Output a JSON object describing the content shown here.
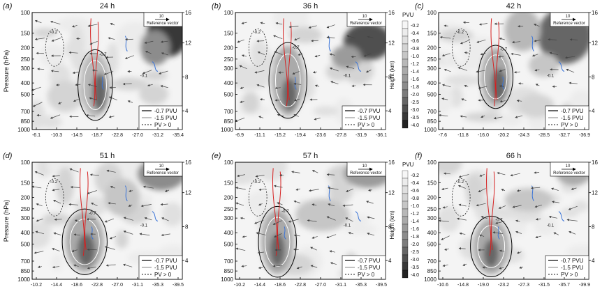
{
  "figure": {
    "y_axis_label": "Pressure (hPa)",
    "right_axis_label": "Height (km)",
    "colorbar_title": "PVU",
    "colorbar_levels": [
      "-0.2",
      "-0.4",
      "-0.6",
      "-0.8",
      "-1.0",
      "-1.2",
      "-1.4",
      "-1.6",
      "-1.8",
      "-2.0",
      "-2.5",
      "-3.0",
      "-3.5",
      "-4.0"
    ],
    "colorbar_fill": [
      "#f6f6f6",
      "#ececec",
      "#e0e0e0",
      "#d4d4d4",
      "#c6c6c6",
      "#b8b8b8",
      "#aaaaaa",
      "#9b9b9b",
      "#8c8c8c",
      "#7c7c7c",
      "#666666",
      "#4f4f4f",
      "#393939",
      "#222222"
    ],
    "reference_vector": {
      "value": "10",
      "label": "Reference vector"
    },
    "legend": [
      "-0.7 PVU",
      "-1.5 PVU",
      "PV > 0"
    ],
    "contour_labels": [
      "-0.7",
      "-0.1",
      "-0.2"
    ],
    "colors": {
      "red_contour": "#d62020",
      "blue_contour": "#3a74d8",
      "grid": "#000000"
    }
  },
  "chart_data": [
    {
      "type": "heatmap",
      "panel": "(a)",
      "title": "24 h",
      "x_ticks": [
        "-6.1",
        "-10.3",
        "-14.5",
        "-18.7",
        "-22.8",
        "-27.0",
        "-31.2",
        "-35.4"
      ],
      "y_ticks": [
        "100",
        "150",
        "200",
        "250",
        "300",
        "400",
        "500",
        "700",
        "850",
        "1000"
      ],
      "y2_ticks": [
        "16",
        "12",
        "8",
        "4"
      ],
      "ylabel": "Pressure (hPa)",
      "ylim": [
        1000,
        100
      ],
      "zlevels_pvu": [
        -4.0,
        -0.2
      ]
    },
    {
      "type": "heatmap",
      "panel": "(b)",
      "title": "36 h",
      "x_ticks": [
        "-6.9",
        "-11.1",
        "-15.2",
        "-19.4",
        "-23.6",
        "-27.8",
        "-31.9",
        "-36.1"
      ],
      "y_ticks": [
        "100",
        "150",
        "200",
        "250",
        "300",
        "400",
        "500",
        "700",
        "850",
        "1000"
      ],
      "y2_ticks": [
        "16",
        "12",
        "8",
        "4"
      ],
      "ylabel": "",
      "ylim": [
        1000,
        100
      ],
      "zlevels_pvu": [
        -4.0,
        -0.2
      ]
    },
    {
      "type": "heatmap",
      "panel": "(c)",
      "title": "42 h",
      "x_ticks": [
        "-7.6",
        "-11.8",
        "-16.0",
        "-20.2",
        "-24.3",
        "-28.5",
        "-32.7",
        "-36.9"
      ],
      "y_ticks": [
        "100",
        "150",
        "200",
        "250",
        "300",
        "400",
        "500",
        "700",
        "850",
        "1000"
      ],
      "y2_ticks": [
        "16",
        "12",
        "8",
        "4"
      ],
      "ylabel": "",
      "ylim": [
        1000,
        100
      ],
      "zlevels_pvu": [
        -4.0,
        -0.2
      ]
    },
    {
      "type": "heatmap",
      "panel": "(d)",
      "title": "51 h",
      "x_ticks": [
        "-10.2",
        "-14.4",
        "-18.6",
        "-22.8",
        "-27.0",
        "-31.1",
        "-35.3",
        "-39.5"
      ],
      "y_ticks": [
        "100",
        "150",
        "200",
        "250",
        "300",
        "400",
        "500",
        "700",
        "850",
        "1000"
      ],
      "y2_ticks": [
        "16",
        "12",
        "8",
        "4"
      ],
      "ylabel": "Pressure (hPa)",
      "ylim": [
        1000,
        100
      ],
      "zlevels_pvu": [
        -4.0,
        -0.2
      ]
    },
    {
      "type": "heatmap",
      "panel": "(e)",
      "title": "57 h",
      "x_ticks": [
        "-10.2",
        "-14.4",
        "-18.6",
        "-22.8",
        "-27.0",
        "-31.1",
        "-35.3",
        "-39.5"
      ],
      "y_ticks": [
        "100",
        "150",
        "200",
        "250",
        "300",
        "400",
        "500",
        "700",
        "850",
        "1000"
      ],
      "y2_ticks": [
        "16",
        "12",
        "8",
        "4"
      ],
      "ylabel": "",
      "ylim": [
        1000,
        100
      ],
      "zlevels_pvu": [
        -4.0,
        -0.2
      ]
    },
    {
      "type": "heatmap",
      "panel": "(f)",
      "title": "66 h",
      "x_ticks": [
        "-10.6",
        "-14.8",
        "-19.0",
        "-23.2",
        "-27.3",
        "-31.5",
        "-35.7",
        "-39.9"
      ],
      "y_ticks": [
        "100",
        "150",
        "200",
        "250",
        "300",
        "400",
        "500",
        "700",
        "850",
        "1000"
      ],
      "y2_ticks": [
        "16",
        "12",
        "8",
        "4"
      ],
      "ylabel": "",
      "ylim": [
        1000,
        100
      ],
      "zlevels_pvu": [
        -4.0,
        -0.2
      ]
    }
  ]
}
